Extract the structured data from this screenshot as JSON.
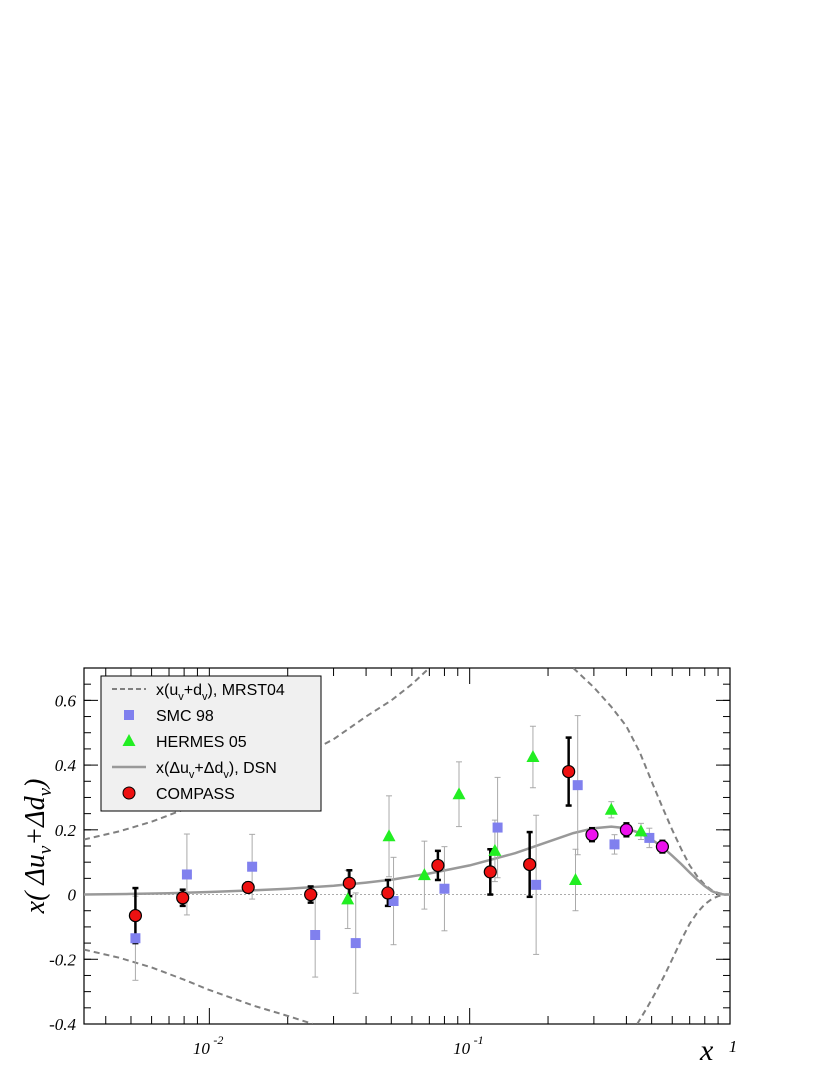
{
  "chart_data": {
    "type": "scatter",
    "xlabel": "x",
    "ylabel": "x( Δu_v + Δd_v )",
    "x_scale": "log",
    "xlim": [
      0.0033,
      1
    ],
    "ylim": [
      -0.4,
      0.7
    ],
    "yticks": [
      -0.4,
      -0.2,
      0,
      0.2,
      0.4,
      0.6
    ],
    "ytick_labels": [
      "-0.4",
      "-0.2",
      "0",
      "0.2",
      "0.4",
      "0.6"
    ],
    "xticks_labeled": [
      0.01,
      0.1,
      1
    ],
    "xtick_labels": [
      "10",
      "10",
      "1"
    ],
    "xtick_exponents": [
      "-2",
      "-1",
      ""
    ],
    "legend": [
      {
        "key": "mrst",
        "label": "x(u_v+d_v), MRST04"
      },
      {
        "key": "smc",
        "label": "SMC 98"
      },
      {
        "key": "hermes",
        "label": "HERMES 05"
      },
      {
        "key": "dsn",
        "label": "x(Δu_v+Δd_v), DSN"
      },
      {
        "key": "compass",
        "label": "COMPASS"
      }
    ],
    "colors": {
      "smc": "#8080ee",
      "hermes": "#22ee22",
      "compass": "#ee1111",
      "compass_highx": "#ee11ee",
      "curve": "#999999",
      "dashed": "#808080"
    },
    "series": [
      {
        "name": "SMC 98",
        "marker": "square",
        "points": [
          {
            "x": 0.0052,
            "y": -0.135,
            "err": 0.13
          },
          {
            "x": 0.0082,
            "y": 0.062,
            "err": 0.125
          },
          {
            "x": 0.0146,
            "y": 0.086,
            "err": 0.1
          },
          {
            "x": 0.0255,
            "y": -0.125,
            "err": 0.13
          },
          {
            "x": 0.0365,
            "y": -0.15,
            "err": 0.155
          },
          {
            "x": 0.051,
            "y": -0.02,
            "err": 0.135
          },
          {
            "x": 0.08,
            "y": 0.018,
            "err": 0.13
          },
          {
            "x": 0.128,
            "y": 0.207,
            "err": 0.155
          },
          {
            "x": 0.18,
            "y": 0.03,
            "err": 0.215
          },
          {
            "x": 0.26,
            "y": 0.338,
            "err": 0.215
          },
          {
            "x": 0.36,
            "y": 0.155,
            "err": 0.03
          },
          {
            "x": 0.49,
            "y": 0.175,
            "err": 0.03
          }
        ]
      },
      {
        "name": "HERMES 05",
        "marker": "triangle",
        "points": [
          {
            "x": 0.034,
            "y": -0.015,
            "err": 0.09
          },
          {
            "x": 0.049,
            "y": 0.18,
            "err": 0.125
          },
          {
            "x": 0.067,
            "y": 0.06,
            "err": 0.105
          },
          {
            "x": 0.091,
            "y": 0.31,
            "err": 0.1
          },
          {
            "x": 0.125,
            "y": 0.135,
            "err": 0.095
          },
          {
            "x": 0.175,
            "y": 0.425,
            "err": 0.095
          },
          {
            "x": 0.255,
            "y": 0.045,
            "err": 0.095
          },
          {
            "x": 0.35,
            "y": 0.262,
            "err": 0.025
          },
          {
            "x": 0.455,
            "y": 0.195,
            "err": 0.025
          }
        ]
      },
      {
        "name": "COMPASS",
        "marker": "circle",
        "points": [
          {
            "x": 0.0052,
            "y": -0.065,
            "err": 0.085,
            "highx": false
          },
          {
            "x": 0.0079,
            "y": -0.01,
            "err": 0.025,
            "highx": false
          },
          {
            "x": 0.0141,
            "y": 0.022,
            "err": 0.015,
            "highx": false
          },
          {
            "x": 0.0245,
            "y": 0.0,
            "err": 0.025,
            "highx": false
          },
          {
            "x": 0.0345,
            "y": 0.035,
            "err": 0.04,
            "highx": false
          },
          {
            "x": 0.0485,
            "y": 0.005,
            "err": 0.04,
            "highx": false
          },
          {
            "x": 0.0755,
            "y": 0.09,
            "err": 0.045,
            "highx": false
          },
          {
            "x": 0.12,
            "y": 0.07,
            "err": 0.07,
            "highx": false
          },
          {
            "x": 0.17,
            "y": 0.093,
            "err": 0.1,
            "highx": false
          },
          {
            "x": 0.24,
            "y": 0.38,
            "err": 0.105,
            "highx": false
          },
          {
            "x": 0.295,
            "y": 0.185,
            "err": 0.02,
            "highx": true
          },
          {
            "x": 0.4,
            "y": 0.2,
            "err": 0.02,
            "highx": true
          },
          {
            "x": 0.55,
            "y": 0.148,
            "err": 0.018,
            "highx": true
          }
        ]
      }
    ],
    "curves": {
      "dsn": {
        "name": "x(Δu_v+Δd_v), DSN",
        "points": [
          [
            0.0033,
            0.0
          ],
          [
            0.005,
            0.002
          ],
          [
            0.007,
            0.004
          ],
          [
            0.01,
            0.008
          ],
          [
            0.015,
            0.013
          ],
          [
            0.02,
            0.018
          ],
          [
            0.03,
            0.027
          ],
          [
            0.04,
            0.037
          ],
          [
            0.05,
            0.046
          ],
          [
            0.07,
            0.065
          ],
          [
            0.1,
            0.09
          ],
          [
            0.15,
            0.128
          ],
          [
            0.2,
            0.163
          ],
          [
            0.25,
            0.19
          ],
          [
            0.3,
            0.205
          ],
          [
            0.35,
            0.21
          ],
          [
            0.4,
            0.205
          ],
          [
            0.45,
            0.19
          ],
          [
            0.5,
            0.17
          ],
          [
            0.55,
            0.147
          ],
          [
            0.6,
            0.12
          ],
          [
            0.65,
            0.094
          ],
          [
            0.7,
            0.068
          ],
          [
            0.75,
            0.045
          ],
          [
            0.8,
            0.026
          ],
          [
            0.85,
            0.011
          ],
          [
            0.9,
            0.003
          ],
          [
            0.95,
            0.0
          ],
          [
            1.0,
            0.0
          ]
        ]
      },
      "mrst_upper": {
        "name": "x(u_v+d_v), MRST04",
        "points": [
          [
            0.0033,
            0.17
          ],
          [
            0.0045,
            0.195
          ],
          [
            0.006,
            0.225
          ],
          [
            0.008,
            0.263
          ],
          [
            0.01,
            0.295
          ],
          [
            0.015,
            0.355
          ],
          [
            0.02,
            0.405
          ],
          [
            0.03,
            0.48
          ],
          [
            0.04,
            0.55
          ],
          [
            0.05,
            0.6
          ],
          [
            0.06,
            0.65
          ],
          [
            0.07,
            0.7
          ]
        ]
      },
      "mrst_lower": {
        "name": "x(u_v+d_v), MRST04 (negated)",
        "points": [
          [
            0.0033,
            -0.17
          ],
          [
            0.0045,
            -0.195
          ],
          [
            0.006,
            -0.225
          ],
          [
            0.008,
            -0.263
          ],
          [
            0.01,
            -0.295
          ],
          [
            0.015,
            -0.345
          ],
          [
            0.02,
            -0.375
          ],
          [
            0.025,
            -0.4
          ]
        ]
      },
      "mrst_upper_highx": {
        "name": "x(u_v+d_v), MRST04 high-x",
        "points": [
          [
            0.25,
            0.7
          ],
          [
            0.3,
            0.64
          ],
          [
            0.35,
            0.58
          ],
          [
            0.4,
            0.52
          ],
          [
            0.45,
            0.44
          ],
          [
            0.5,
            0.35
          ],
          [
            0.55,
            0.27
          ],
          [
            0.6,
            0.2
          ],
          [
            0.65,
            0.14
          ],
          [
            0.7,
            0.09
          ],
          [
            0.75,
            0.055
          ],
          [
            0.8,
            0.03
          ],
          [
            0.85,
            0.014
          ],
          [
            0.9,
            0.005
          ],
          [
            0.95,
            0.001
          ],
          [
            1.0,
            0.0
          ]
        ]
      },
      "mrst_lower_highx": {
        "name": "x(u_v+d_v), MRST04 high-x (negated)",
        "points": [
          [
            0.44,
            -0.4
          ],
          [
            0.48,
            -0.35
          ],
          [
            0.52,
            -0.3
          ],
          [
            0.56,
            -0.25
          ],
          [
            0.6,
            -0.2
          ],
          [
            0.65,
            -0.14
          ],
          [
            0.7,
            -0.09
          ],
          [
            0.75,
            -0.055
          ],
          [
            0.8,
            -0.03
          ],
          [
            0.85,
            -0.014
          ],
          [
            0.9,
            -0.005
          ],
          [
            0.95,
            -0.001
          ],
          [
            1.0,
            0.0
          ]
        ]
      }
    },
    "zero_line": true,
    "legend_position": "top-left"
  }
}
